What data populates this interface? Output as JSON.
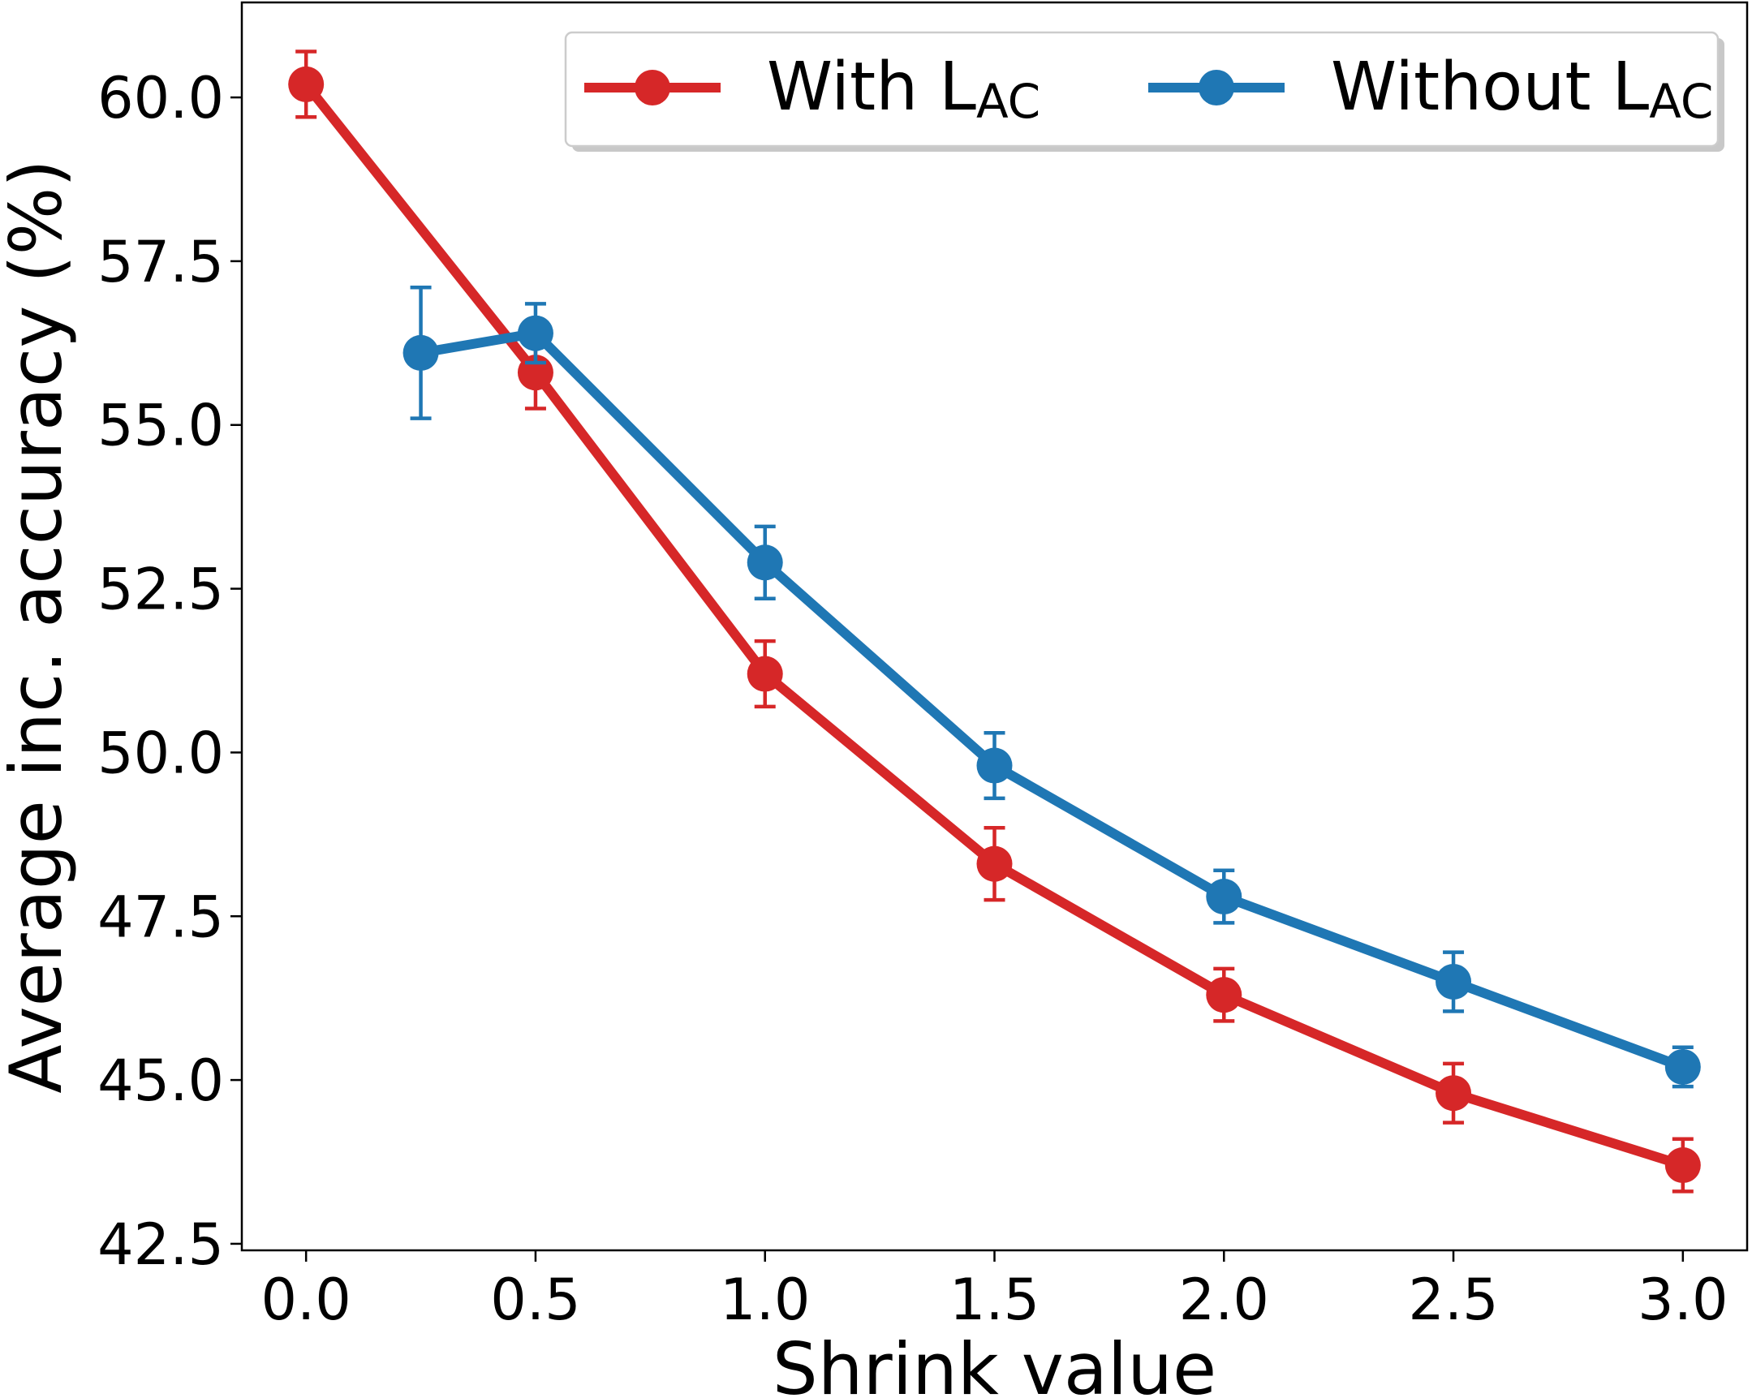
{
  "chart_data": {
    "type": "line",
    "title": "",
    "xlabel": "Shrink value",
    "ylabel": "Average inc. accuracy (%)",
    "xlim": [
      -0.14,
      3.14
    ],
    "ylim": [
      42.4,
      61.45
    ],
    "xticks": [
      0.0,
      0.5,
      1.0,
      1.5,
      2.0,
      2.5,
      3.0
    ],
    "xtick_labels": [
      "0.0",
      "0.5",
      "1.0",
      "1.5",
      "2.0",
      "2.5",
      "3.0"
    ],
    "yticks": [
      42.5,
      45.0,
      47.5,
      50.0,
      52.5,
      55.0,
      57.5,
      60.0
    ],
    "ytick_labels": [
      "42.5",
      "45.0",
      "47.5",
      "50.0",
      "52.5",
      "55.0",
      "57.5",
      "60.0"
    ],
    "grid": false,
    "legend_position": "top-right",
    "series": [
      {
        "name": "With L",
        "name_sub": "AC",
        "color": "#d62728",
        "x": [
          0.0,
          0.5,
          1.0,
          1.5,
          2.0,
          2.5,
          3.0
        ],
        "y": [
          60.2,
          55.8,
          51.2,
          48.3,
          46.3,
          44.8,
          43.7
        ],
        "err": [
          0.5,
          0.55,
          0.5,
          0.55,
          0.4,
          0.45,
          0.4
        ]
      },
      {
        "name": "Without L",
        "name_sub": "AC",
        "color": "#1f77b4",
        "x": [
          0.25,
          0.5,
          1.0,
          1.5,
          2.0,
          2.5,
          3.0
        ],
        "y": [
          56.1,
          56.4,
          52.9,
          49.8,
          47.8,
          46.5,
          45.2
        ],
        "err": [
          1.0,
          0.45,
          0.55,
          0.5,
          0.4,
          0.45,
          0.3
        ]
      }
    ]
  }
}
